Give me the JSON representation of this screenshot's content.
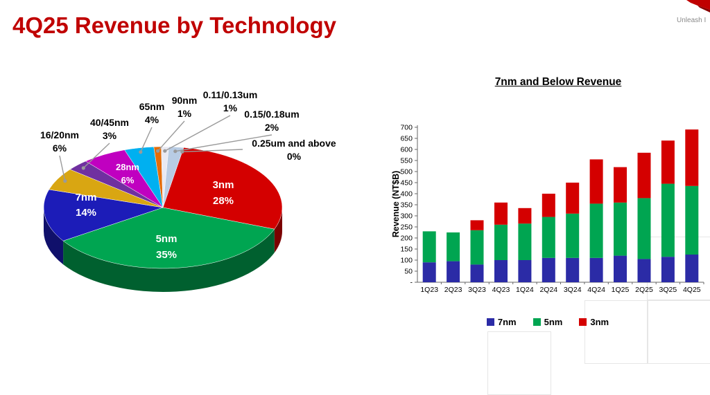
{
  "slide": {
    "title": "4Q25 Revenue by Technology",
    "logo_tagline": "Unleash I"
  },
  "chart_data": [
    {
      "type": "pie",
      "effect": "3d",
      "start_angle": 10,
      "unit": "%",
      "slices": [
        {
          "label": "3nm",
          "value": 28,
          "color": "#D40000"
        },
        {
          "label": "5nm",
          "value": 35,
          "color": "#00A551"
        },
        {
          "label": "7nm",
          "value": 14,
          "color": "#1C1CB8"
        },
        {
          "label": "16/20nm",
          "value": 6,
          "color": "#D9A612"
        },
        {
          "label": "40/45nm",
          "value": 3,
          "color": "#7030A0"
        },
        {
          "label": "28nm",
          "value": 6,
          "color": "#C000C0"
        },
        {
          "label": "65nm",
          "value": 4,
          "color": "#00B0F0"
        },
        {
          "label": "90nm",
          "value": 1,
          "color": "#E36C09"
        },
        {
          "label": "0.11/0.13um",
          "value": 1,
          "color": "#E9E9F2"
        },
        {
          "label": "0.15/0.18um",
          "value": 2,
          "color": "#B8CCE4"
        },
        {
          "label": "0.25um and above",
          "value": 0,
          "color": "#808080"
        }
      ]
    },
    {
      "type": "bar",
      "stacked": true,
      "title": "7nm and Below Revenue",
      "ylabel": "Revenue (NT$B)",
      "ylim": [
        0,
        700
      ],
      "ytick_step": 50,
      "ytick_zero_label": "-",
      "ytick_labels": [
        "-",
        "50",
        "100",
        "150",
        "200",
        "250",
        "300",
        "350",
        "400",
        "450",
        "500",
        "550",
        "600",
        "650",
        "700"
      ],
      "grid": false,
      "legend_position": "bottom",
      "categories": [
        "1Q23",
        "2Q23",
        "3Q23",
        "4Q23",
        "1Q24",
        "2Q24",
        "3Q24",
        "4Q24",
        "1Q25",
        "2Q25",
        "3Q25",
        "4Q25"
      ],
      "series": [
        {
          "name": "7nm",
          "color": "#2B2BA6",
          "values": [
            90,
            95,
            80,
            100,
            100,
            110,
            110,
            110,
            120,
            105,
            115,
            125
          ]
        },
        {
          "name": "5nm",
          "color": "#00A551",
          "values": [
            140,
            130,
            155,
            160,
            165,
            185,
            200,
            245,
            240,
            275,
            330,
            310
          ]
        },
        {
          "name": "3nm",
          "color": "#D40000",
          "values": [
            0,
            0,
            45,
            100,
            70,
            105,
            140,
            200,
            160,
            205,
            195,
            255
          ]
        }
      ]
    }
  ]
}
